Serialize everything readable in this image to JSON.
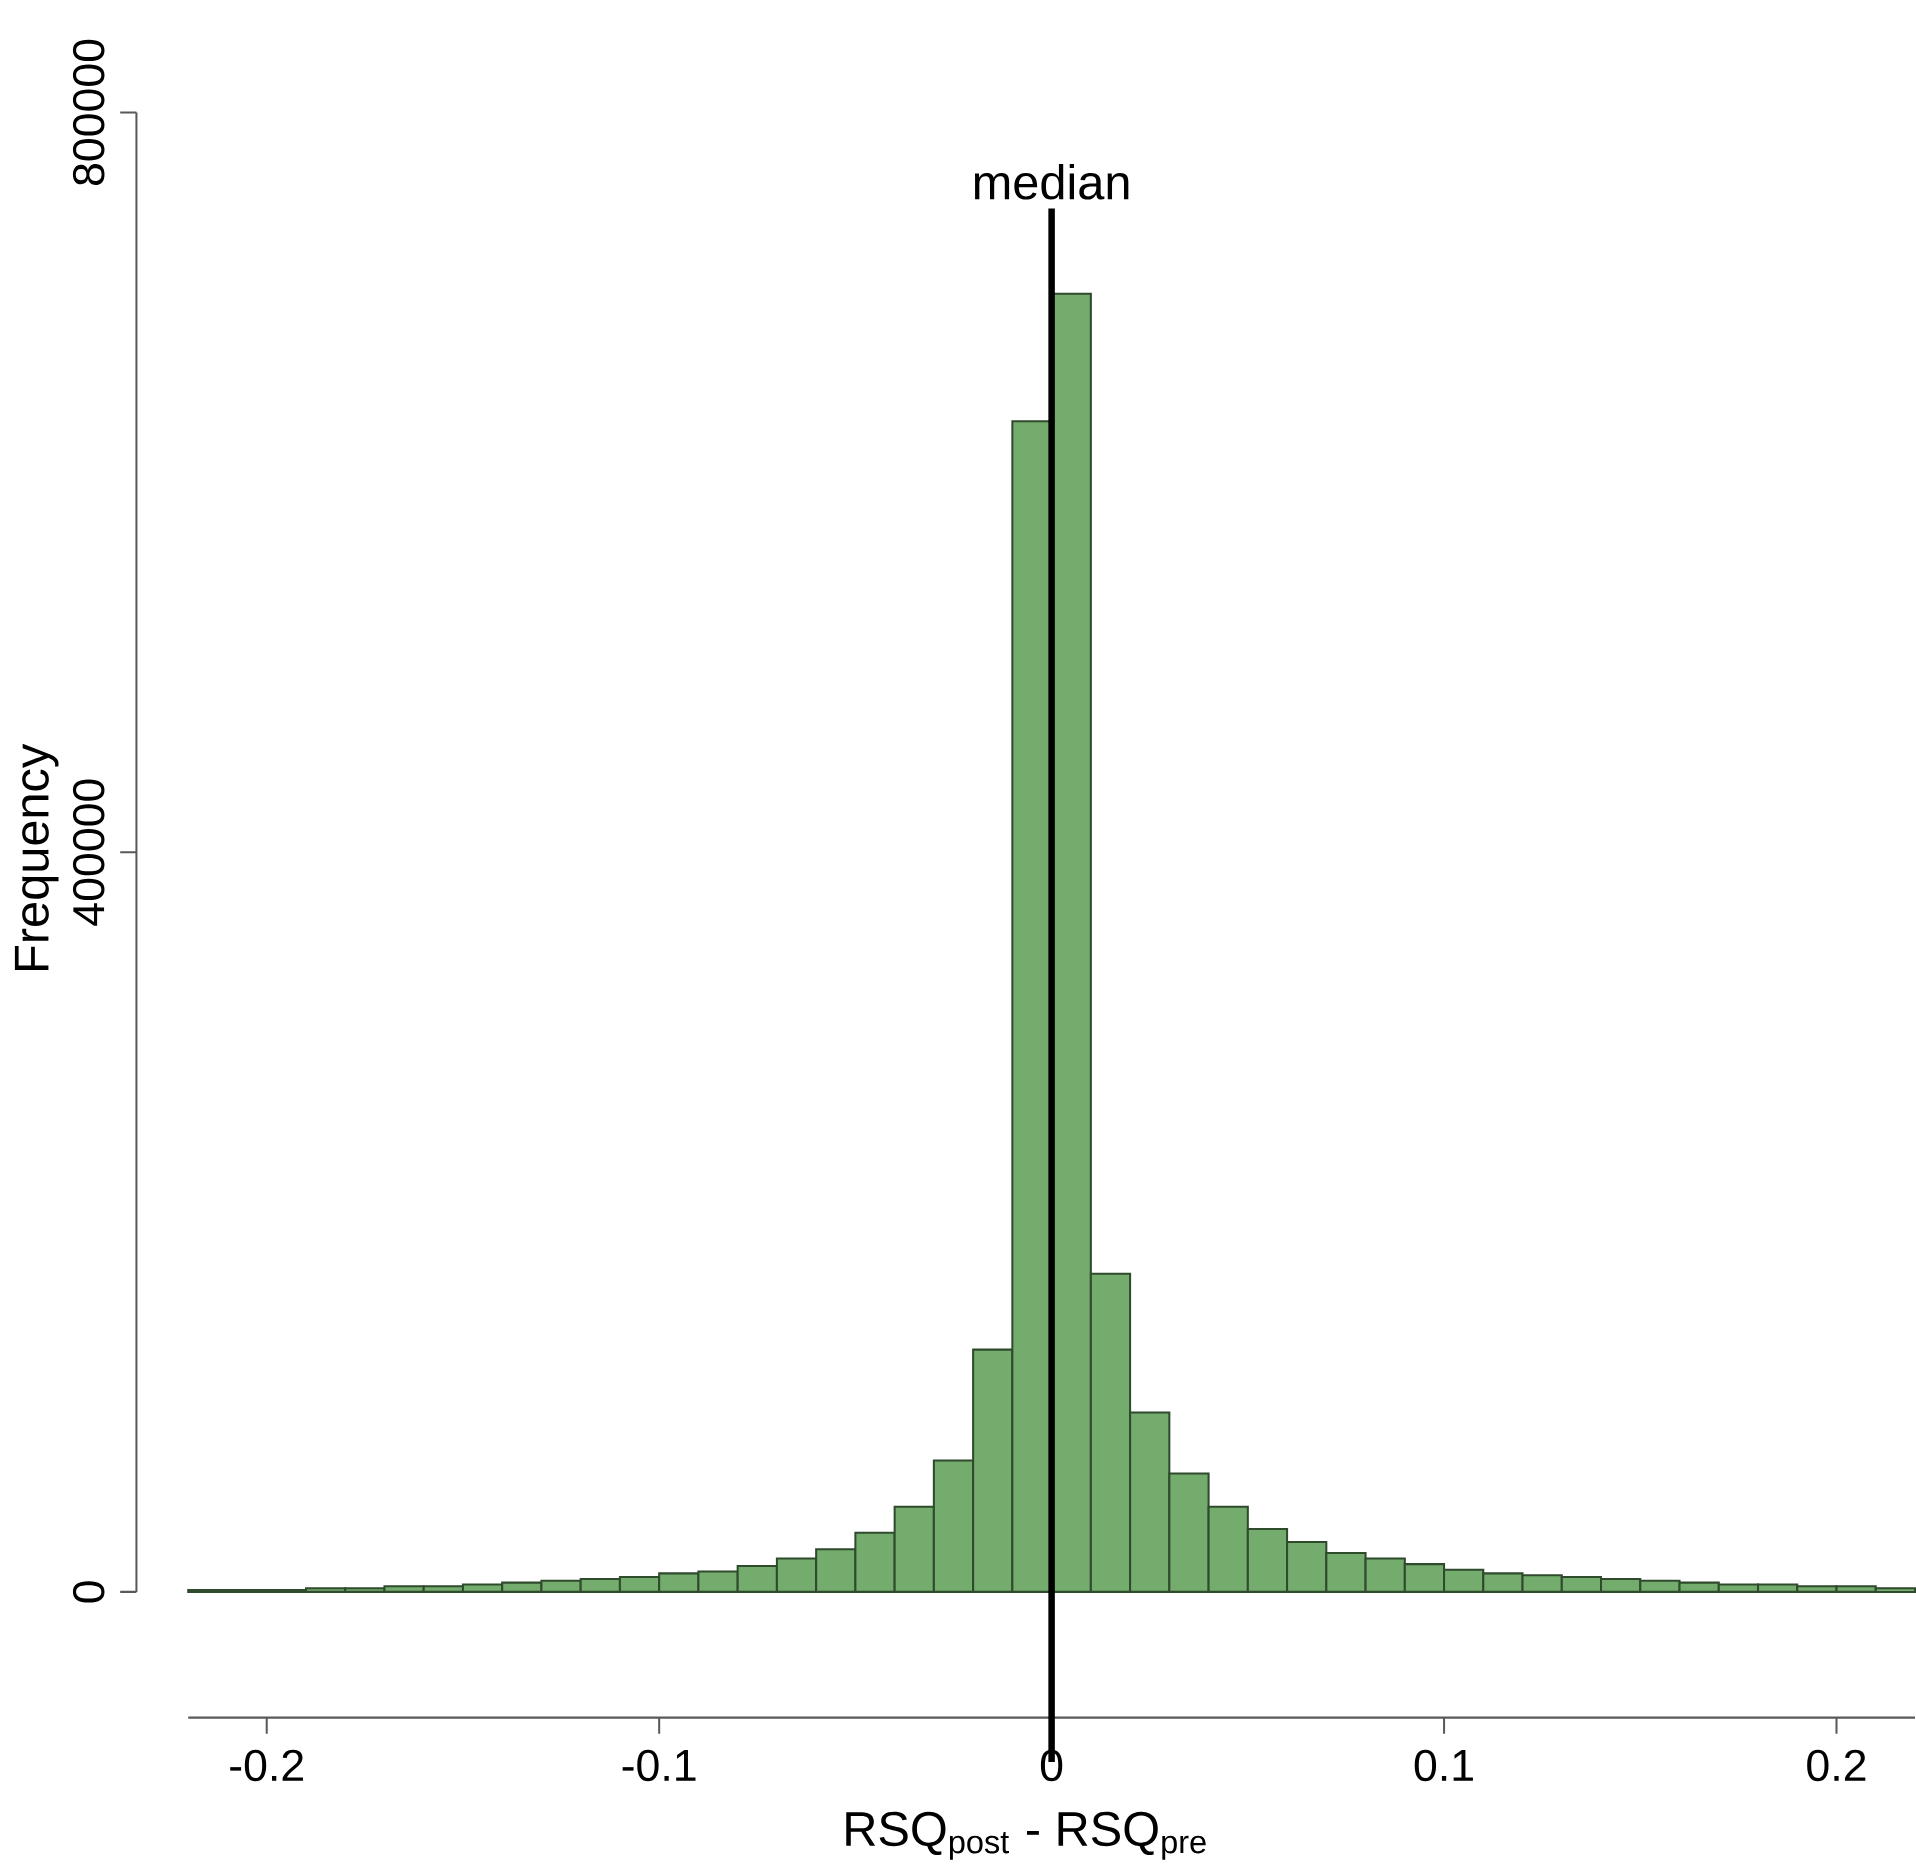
{
  "chart_data": {
    "type": "histogram",
    "xlabel": "RSQ$_{post}$ - RSQ$_{pre}$",
    "ylabel": "Frequency",
    "bins": [
      -0.22,
      -0.21,
      -0.2,
      -0.19,
      -0.18,
      -0.17,
      -0.16,
      -0.15,
      -0.14,
      -0.13,
      -0.12,
      -0.11,
      -0.1,
      -0.09,
      -0.08,
      -0.07,
      -0.06,
      -0.05,
      -0.04,
      -0.03,
      -0.02,
      -0.01,
      0,
      0.01,
      0.02,
      0.03,
      0.04,
      0.05,
      0.06,
      0.07,
      0.08,
      0.09,
      0.1,
      0.11,
      0.12,
      0.13,
      0.14,
      0.15,
      0.16,
      0.17,
      0.18,
      0.19,
      0.2,
      0.21,
      0.22
    ],
    "values": [
      1000,
      1000,
      1000,
      2000,
      2000,
      3000,
      3000,
      4000,
      5000,
      6000,
      7000,
      8000,
      10000,
      11000,
      14000,
      18000,
      23000,
      32000,
      46000,
      71000,
      131000,
      633000,
      702000,
      172000,
      97000,
      64000,
      46000,
      34000,
      27000,
      21000,
      18000,
      15000,
      12000,
      10000,
      9000,
      8000,
      7000,
      6000,
      5000,
      4000,
      4000,
      3000,
      3000,
      2000
    ],
    "color": "#74ac6e",
    "xlim": [
      -0.22,
      0.22
    ],
    "xticks": [
      -0.2,
      -0.1,
      0,
      0.1,
      0.2
    ],
    "ylim": [
      0,
      800000
    ],
    "yticks": [
      0,
      400000,
      800000
    ],
    "ref_lines": [
      {
        "axis": "x",
        "value": 0,
        "label": "median",
        "color": "#000000"
      }
    ]
  }
}
